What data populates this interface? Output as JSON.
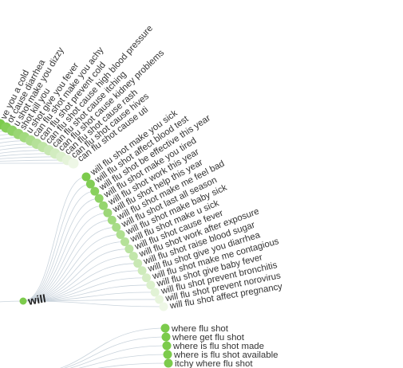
{
  "colors": {
    "background": "#ffffff",
    "link": "#c9d3dc",
    "node_strong": "#7ccb4c",
    "node_faint": "#eef7e6",
    "text": "#333333"
  },
  "groups": [
    {
      "key": "can",
      "items": [
        "ve you a cold",
        "ot cause diarrhea",
        "u shot make you dizzy",
        "shot kill you",
        "u shot give you fever",
        "can flu shot make you achy",
        "can flu shot prevent cold",
        "can flu shot cause high blood pressure",
        "can flu shot cause itching",
        "can flu shot cause kidney problems",
        "can flu shot cause rash",
        "can flu shot cause hives",
        "can flu shot cause uti"
      ]
    },
    {
      "key": "will",
      "hub_label": "will",
      "items": [
        "will flu shot make you sick",
        "will flu shot affect blood test",
        "will flu shot be effective this year",
        "will flu shot make you tired",
        "will flu shot work this year",
        "will flu shot help this year",
        "will flu shot make me feel bad",
        "will flu shot last all season",
        "will flu shot make baby sick",
        "will flu shot make u sick",
        "will flu shot cause fever",
        "will flu shot work after exposure",
        "will flu shot raise blood sugar",
        "will flu shot give you diarrhea",
        "will flu shot make me contagious",
        "will flu shot give baby fever",
        "will flu shot prevent bronchitis",
        "will flu shot prevent norovirus",
        "will flu shot affect pregnancy"
      ]
    },
    {
      "key": "where",
      "items": [
        "where flu shot",
        "where get flu shot",
        "where is flu shot made",
        "where is flu shot available",
        "itchy where flu shot"
      ]
    }
  ]
}
